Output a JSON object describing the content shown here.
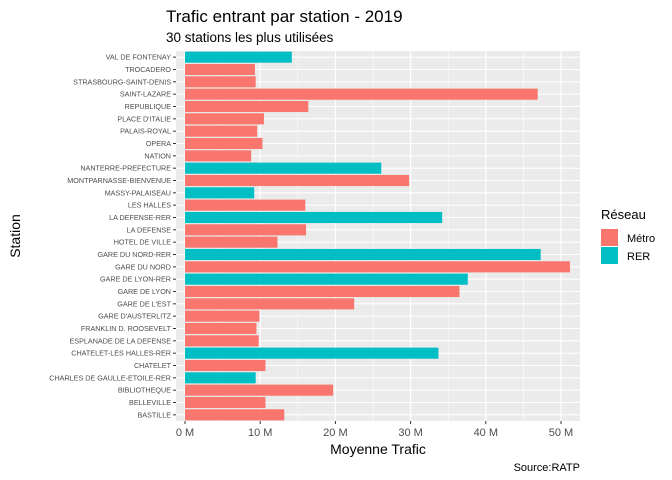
{
  "chart_data": {
    "type": "bar",
    "orientation": "horizontal",
    "title": "Trafic entrant par station - 2019",
    "subtitle": "30 stations les plus utilisées",
    "caption": "Source:RATP",
    "xlabel": "Moyenne Trafic",
    "ylabel": "Station",
    "xlim": [
      0,
      53
    ],
    "x_ticks": [
      0,
      10,
      20,
      30,
      40,
      50
    ],
    "x_tick_labels": [
      "0 M",
      "10 M",
      "20 M",
      "30 M",
      "40 M",
      "50 M"
    ],
    "grid": true,
    "legend": {
      "title": "Réseau",
      "placement": "right",
      "entries": [
        {
          "label": "Métro",
          "color": "#F8766D"
        },
        {
          "label": "RER",
          "color": "#00BFC4"
        }
      ]
    },
    "colors": {
      "Métro": "#F8766D",
      "RER": "#00BFC4",
      "panel": "#EBEBEB"
    },
    "bars": [
      {
        "station": "VAL DE FONTENAY",
        "value": 14.2,
        "reseau": "RER"
      },
      {
        "station": "TROCADERO",
        "value": 9.3,
        "reseau": "Métro"
      },
      {
        "station": "STRASBOURG-SAINT-DENIS",
        "value": 9.4,
        "reseau": "Métro"
      },
      {
        "station": "SAINT-LAZARE",
        "value": 46.9,
        "reseau": "Métro"
      },
      {
        "station": "REPUBLIQUE",
        "value": 16.4,
        "reseau": "Métro"
      },
      {
        "station": "PLACE D'ITALIE",
        "value": 10.5,
        "reseau": "Métro"
      },
      {
        "station": "PALAIS-ROYAL",
        "value": 9.6,
        "reseau": "Métro"
      },
      {
        "station": "OPERA",
        "value": 10.3,
        "reseau": "Métro"
      },
      {
        "station": "NATION",
        "value": 8.8,
        "reseau": "Métro"
      },
      {
        "station": "NANTERRE-PREFECTURE",
        "value": 26.1,
        "reseau": "RER"
      },
      {
        "station": "MONTPARNASSE-BIENVENUE",
        "value": 29.8,
        "reseau": "Métro"
      },
      {
        "station": "MASSY-PALAISEAU",
        "value": 9.2,
        "reseau": "RER"
      },
      {
        "station": "LES HALLES",
        "value": 16.0,
        "reseau": "Métro"
      },
      {
        "station": "LA DEFENSE-RER",
        "value": 34.2,
        "reseau": "RER"
      },
      {
        "station": "LA DEFENSE",
        "value": 16.1,
        "reseau": "Métro"
      },
      {
        "station": "HOTEL DE VILLE",
        "value": 12.3,
        "reseau": "Métro"
      },
      {
        "station": "GARE DU NORD-RER",
        "value": 47.3,
        "reseau": "RER"
      },
      {
        "station": "GARE DU NORD",
        "value": 51.2,
        "reseau": "Métro"
      },
      {
        "station": "GARE DE LYON-RER",
        "value": 37.6,
        "reseau": "RER"
      },
      {
        "station": "GARE DE LYON",
        "value": 36.5,
        "reseau": "Métro"
      },
      {
        "station": "GARE DE L'EST",
        "value": 22.5,
        "reseau": "Métro"
      },
      {
        "station": "GARE D'AUSTERLITZ",
        "value": 9.9,
        "reseau": "Métro"
      },
      {
        "station": "FRANKLIN D. ROOSEVELT",
        "value": 9.5,
        "reseau": "Métro"
      },
      {
        "station": "ESPLANADE DE LA DEFENSE",
        "value": 9.8,
        "reseau": "Métro"
      },
      {
        "station": "CHATELET-LES HALLES-RER",
        "value": 33.7,
        "reseau": "RER"
      },
      {
        "station": "CHATELET",
        "value": 10.7,
        "reseau": "Métro"
      },
      {
        "station": "CHARLES DE GAULLE-ETOILE-RER",
        "value": 9.4,
        "reseau": "RER"
      },
      {
        "station": "BIBLIOTHEQUE",
        "value": 19.7,
        "reseau": "Métro"
      },
      {
        "station": "BELLEVILLE",
        "value": 10.7,
        "reseau": "Métro"
      },
      {
        "station": "BASTILLE",
        "value": 13.2,
        "reseau": "Métro"
      }
    ]
  }
}
